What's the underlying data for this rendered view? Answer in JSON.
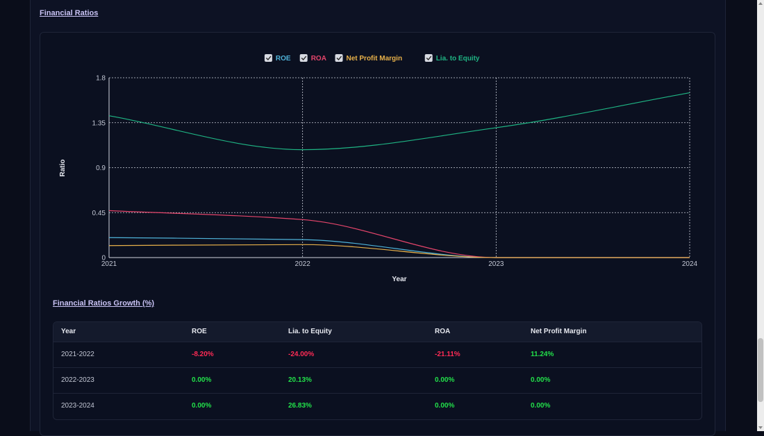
{
  "section_title": "Financial Ratios",
  "growth_title": "Financial Ratios Growth (%)",
  "colors": {
    "roe": "#4fb3d9",
    "roa": "#e5456b",
    "npm": "#e8b14a",
    "lte": "#1fb584",
    "neg": "#ff2b55",
    "pos": "#22e04a"
  },
  "chart_data": {
    "type": "line",
    "x": [
      "2021",
      "2022",
      "2023",
      "2024"
    ],
    "xlabel": "Year",
    "ylabel": "Ratio",
    "ylim": [
      0,
      1.8
    ],
    "yticks": [
      "0",
      "0.45",
      "0.9",
      "1.35",
      "1.8"
    ],
    "grid": true,
    "legend_position": "top-center",
    "series": [
      {
        "name": "ROE",
        "color": "#4fb3d9",
        "values": [
          0.2,
          0.18,
          0.0,
          0.0
        ]
      },
      {
        "name": "ROA",
        "color": "#e5456b",
        "values": [
          0.47,
          0.38,
          0.0,
          0.0
        ]
      },
      {
        "name": "Net Profit Margin",
        "color": "#e8b14a",
        "values": [
          0.12,
          0.13,
          0.0,
          0.0
        ]
      },
      {
        "name": "Lia. to Equity",
        "color": "#1fb584",
        "values": [
          1.42,
          1.08,
          1.3,
          1.65
        ]
      }
    ]
  },
  "table": {
    "headers": [
      "Year",
      "ROE",
      "Lia. to Equity",
      "ROA",
      "Net Profit Margin"
    ],
    "rows": [
      {
        "year": "2021-2022",
        "roe": "-8.20%",
        "lte": "-24.00%",
        "roa": "-21.11%",
        "npm": "11.24%"
      },
      {
        "year": "2022-2023",
        "roe": "0.00%",
        "lte": "20.13%",
        "roa": "0.00%",
        "npm": "0.00%"
      },
      {
        "year": "2023-2024",
        "roe": "0.00%",
        "lte": "26.83%",
        "roa": "0.00%",
        "npm": "0.00%"
      }
    ]
  }
}
